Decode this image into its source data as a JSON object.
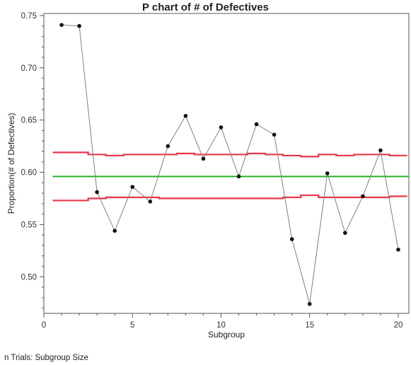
{
  "chart_data": {
    "type": "line",
    "title": "P chart of # of Defectives",
    "xlabel": "Subgroup",
    "ylabel": "Proportion(# of Defectives)",
    "xlim": [
      0,
      20.6
    ],
    "ylim": [
      0.465,
      0.752
    ],
    "x_ticks": [
      0,
      5,
      10,
      15,
      20
    ],
    "y_ticks": [
      0.5,
      0.55,
      0.6,
      0.65,
      0.7,
      0.75
    ],
    "grid": false,
    "x": [
      1,
      2,
      3,
      4,
      5,
      6,
      7,
      8,
      9,
      10,
      11,
      12,
      13,
      14,
      15,
      16,
      17,
      18,
      19,
      20
    ],
    "series": [
      {
        "values": [
          0.741,
          0.74,
          0.581,
          0.544,
          0.586,
          0.572,
          0.625,
          0.654,
          0.613,
          0.643,
          0.596,
          0.646,
          0.636,
          0.536,
          0.474,
          0.599,
          0.542,
          0.577,
          0.621,
          0.526
        ],
        "color": "#808080",
        "marker_color": "#111111"
      }
    ],
    "center_line": {
      "value": 0.596,
      "color": "#22b022"
    },
    "ucl": {
      "values": [
        0.619,
        0.619,
        0.617,
        0.616,
        0.617,
        0.617,
        0.617,
        0.618,
        0.617,
        0.617,
        0.617,
        0.618,
        0.617,
        0.616,
        0.615,
        0.617,
        0.616,
        0.617,
        0.617,
        0.616
      ],
      "color": "#e8364a"
    },
    "lcl": {
      "values": [
        0.573,
        0.573,
        0.575,
        0.576,
        0.576,
        0.576,
        0.575,
        0.575,
        0.575,
        0.575,
        0.575,
        0.575,
        0.575,
        0.576,
        0.578,
        0.576,
        0.576,
        0.576,
        0.576,
        0.577
      ],
      "color": "#e8364a"
    }
  },
  "footnote": "n Trials: Subgroup Size"
}
